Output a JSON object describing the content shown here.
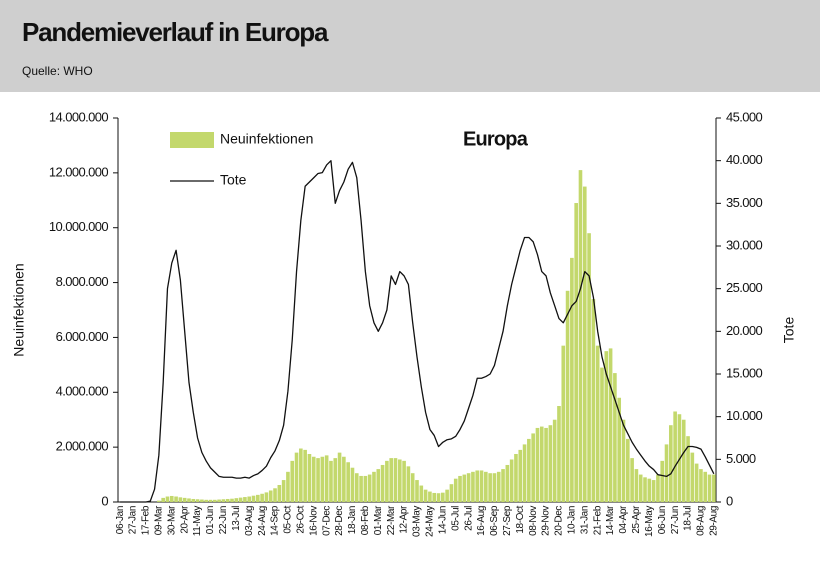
{
  "header": {
    "title": "Pandemieverlauf in Europa",
    "source": "Quelle: WHO"
  },
  "chart_data": {
    "type": "bar",
    "title": "Europa",
    "categories": [
      "06-Jan",
      null,
      null,
      "27-Jan",
      null,
      null,
      "17-Feb",
      null,
      null,
      "09-Mar",
      null,
      null,
      "30-Mar",
      null,
      null,
      "20-Apr",
      null,
      null,
      "11-May",
      null,
      null,
      "01-Jun",
      null,
      null,
      "22-Jun",
      null,
      null,
      "13-Jul",
      null,
      null,
      "03-Aug",
      null,
      null,
      "24-Aug",
      null,
      null,
      "14-Sep",
      null,
      null,
      "05-Oct",
      null,
      null,
      "26-Oct",
      null,
      null,
      "16-Nov",
      null,
      null,
      "07-Dec",
      null,
      null,
      "28-Dec",
      null,
      null,
      "18-Jan",
      null,
      null,
      "08-Feb",
      null,
      null,
      "01-Mar",
      null,
      null,
      "22-Mar",
      null,
      null,
      "12-Apr",
      null,
      null,
      "03-May",
      null,
      null,
      "24-May",
      null,
      null,
      "14-Jun",
      null,
      null,
      "05-Jul",
      null,
      null,
      "26-Jul",
      null,
      null,
      "16-Aug",
      null,
      null,
      "06-Sep",
      null,
      null,
      "27-Sep",
      null,
      null,
      "18-Oct",
      null,
      null,
      "08-Nov",
      null,
      null,
      "29-Nov",
      null,
      null,
      "20-Dec",
      null,
      null,
      "10-Jan",
      null,
      null,
      "31-Jan",
      null,
      null,
      "21-Feb",
      null,
      null,
      "14-Mar",
      null,
      null,
      "04-Apr",
      null,
      null,
      "25-Apr",
      null,
      null,
      "16-May",
      null,
      null,
      "06-Jun",
      null,
      null,
      "27-Jun",
      null,
      null,
      "18-Jul",
      null,
      null,
      "08-Aug",
      null,
      null,
      "29-Aug"
    ],
    "series": [
      {
        "name": "Neuinfektionen",
        "type": "bar",
        "color": "#c3d86c",
        "axis": "y",
        "values": [
          0,
          0,
          0,
          0,
          0,
          0,
          0,
          0,
          0,
          50000,
          150000,
          200000,
          220000,
          200000,
          170000,
          150000,
          130000,
          110000,
          100000,
          90000,
          80000,
          80000,
          80000,
          90000,
          100000,
          110000,
          120000,
          140000,
          160000,
          180000,
          200000,
          230000,
          260000,
          300000,
          350000,
          420000,
          500000,
          620000,
          800000,
          1100000,
          1500000,
          1800000,
          1950000,
          1900000,
          1750000,
          1650000,
          1600000,
          1650000,
          1700000,
          1500000,
          1600000,
          1800000,
          1650000,
          1450000,
          1250000,
          1050000,
          950000,
          950000,
          1000000,
          1100000,
          1200000,
          1350000,
          1500000,
          1600000,
          1600000,
          1550000,
          1500000,
          1300000,
          1050000,
          800000,
          600000,
          450000,
          380000,
          330000,
          320000,
          340000,
          450000,
          650000,
          850000,
          950000,
          1000000,
          1050000,
          1100000,
          1150000,
          1150000,
          1100000,
          1050000,
          1050000,
          1100000,
          1200000,
          1350000,
          1550000,
          1750000,
          1900000,
          2100000,
          2300000,
          2500000,
          2700000,
          2750000,
          2700000,
          2800000,
          3000000,
          3500000,
          5700000,
          7700000,
          8900000,
          10900000,
          12100000,
          11500000,
          9800000,
          7400000,
          5700000,
          4900000,
          5500000,
          5600000,
          4700000,
          3800000,
          3000000,
          2300000,
          1600000,
          1200000,
          1000000,
          900000,
          850000,
          800000,
          1000000,
          1500000,
          2100000,
          2800000,
          3300000,
          3200000,
          3000000,
          2400000,
          1800000,
          1400000,
          1200000,
          1100000,
          1000000,
          1000000
        ]
      },
      {
        "name": "Tote",
        "type": "line",
        "color": "#111111",
        "axis": "y2",
        "values": [
          0,
          0,
          0,
          0,
          0,
          0,
          0,
          100,
          1500,
          5500,
          14000,
          25000,
          28000,
          29500,
          26000,
          20000,
          14000,
          10500,
          7500,
          5800,
          4800,
          4000,
          3500,
          3000,
          2900,
          2900,
          2900,
          2800,
          2800,
          2900,
          2800,
          3100,
          3300,
          3700,
          4200,
          5200,
          6000,
          7200,
          9000,
          13000,
          19000,
          27000,
          33000,
          37000,
          37500,
          38000,
          38500,
          38600,
          39500,
          40000,
          35000,
          36500,
          37500,
          39000,
          39800,
          38000,
          33000,
          27000,
          23000,
          21000,
          20000,
          21000,
          22500,
          26500,
          25500,
          27000,
          26500,
          25500,
          21000,
          17000,
          13500,
          10500,
          8500,
          7800,
          6500,
          7000,
          7300,
          7400,
          7700,
          8500,
          9500,
          11000,
          12500,
          14500,
          14500,
          14700,
          15000,
          16000,
          18000,
          20000,
          23000,
          25500,
          27500,
          29500,
          31000,
          31000,
          30500,
          29000,
          27000,
          26500,
          24500,
          23000,
          21500,
          21000,
          22000,
          23000,
          23500,
          25000,
          27000,
          26500,
          24000,
          20000,
          17000,
          15000,
          13500,
          12000,
          10500,
          9000,
          8000,
          7000,
          6200,
          5500,
          4800,
          4200,
          3800,
          3200,
          3100,
          3000,
          3300,
          4200,
          5000,
          5800,
          6500,
          6500,
          6400,
          6200,
          5300,
          4300,
          3300
        ]
      }
    ],
    "ylabel": "Neuinfektionen",
    "y2label": "Tote",
    "ylim": [
      0,
      14000000
    ],
    "yticks": [
      0,
      {
        "value": 2000000,
        "label": "2.000.000"
      },
      {
        "value": 4000000,
        "label": "4.000.000"
      },
      {
        "value": 6000000,
        "label": "6.000.000"
      },
      {
        "value": 8000000,
        "label": "8.000.000"
      },
      {
        "value": 10000000,
        "label": "10.000.000"
      },
      {
        "value": 12000000,
        "label": "12.000.000"
      },
      {
        "value": 14000000,
        "label": "14.000.000"
      }
    ],
    "y2lim": [
      0,
      45000
    ],
    "y2ticks": [
      0,
      {
        "value": 5000,
        "label": "5.000"
      },
      {
        "value": 10000,
        "label": "10.000"
      },
      {
        "value": 15000,
        "label": "15.000"
      },
      {
        "value": 20000,
        "label": "20.000"
      },
      {
        "value": 25000,
        "label": "25.000"
      },
      {
        "value": 30000,
        "label": "30.000"
      },
      {
        "value": 35000,
        "label": "35.000"
      },
      {
        "value": 40000,
        "label": "40.000"
      },
      {
        "value": 45000,
        "label": "45.000"
      }
    ],
    "grid": false
  }
}
